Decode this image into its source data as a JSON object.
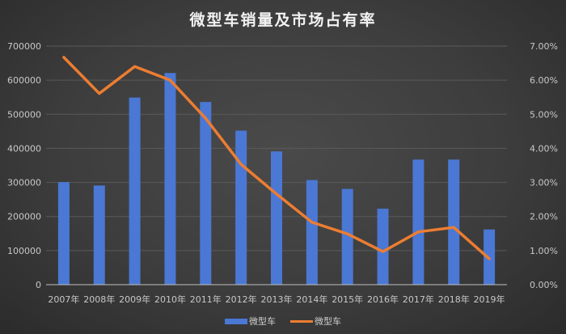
{
  "chart_data": {
    "type": "bar+line",
    "title": "微型车销量及市场占有率",
    "categories": [
      "2007年",
      "2008年",
      "2009年",
      "2010年",
      "2011年",
      "2012年",
      "2013年",
      "2014年",
      "2015年",
      "2016年",
      "2017年",
      "2018年",
      "2019年"
    ],
    "series": [
      {
        "name": "微型车",
        "type": "bar",
        "axis": "left",
        "color": "#4a78d4",
        "values": [
          301000,
          291000,
          549000,
          621000,
          536000,
          452000,
          391000,
          307000,
          281000,
          223000,
          367000,
          367000,
          162000
        ]
      },
      {
        "name": "微型车",
        "type": "line",
        "axis": "right",
        "color": "#ed7d31",
        "values": [
          6.67,
          5.61,
          6.4,
          6.0,
          4.88,
          3.53,
          2.66,
          1.83,
          1.49,
          0.97,
          1.55,
          1.68,
          0.76
        ]
      }
    ],
    "xlabel": "",
    "ylabel": "",
    "y_left": {
      "range": [
        0,
        700000
      ],
      "ticks": [
        "0",
        "100000",
        "200000",
        "300000",
        "400000",
        "500000",
        "600000",
        "700000"
      ]
    },
    "y_right": {
      "range": [
        0,
        7
      ],
      "ticks": [
        "0.00%",
        "1.00%",
        "2.00%",
        "3.00%",
        "4.00%",
        "5.00%",
        "6.00%",
        "7.00%"
      ]
    },
    "grid": true,
    "legend_position": "bottom"
  },
  "legend": {
    "items": [
      {
        "label": "微型车",
        "kind": "bar"
      },
      {
        "label": "微型车",
        "kind": "line"
      }
    ]
  },
  "colors": {
    "bar": "#4a78d4",
    "line": "#ed7d31",
    "grid": "#5a5a5a",
    "text": "#c8c8c8"
  }
}
